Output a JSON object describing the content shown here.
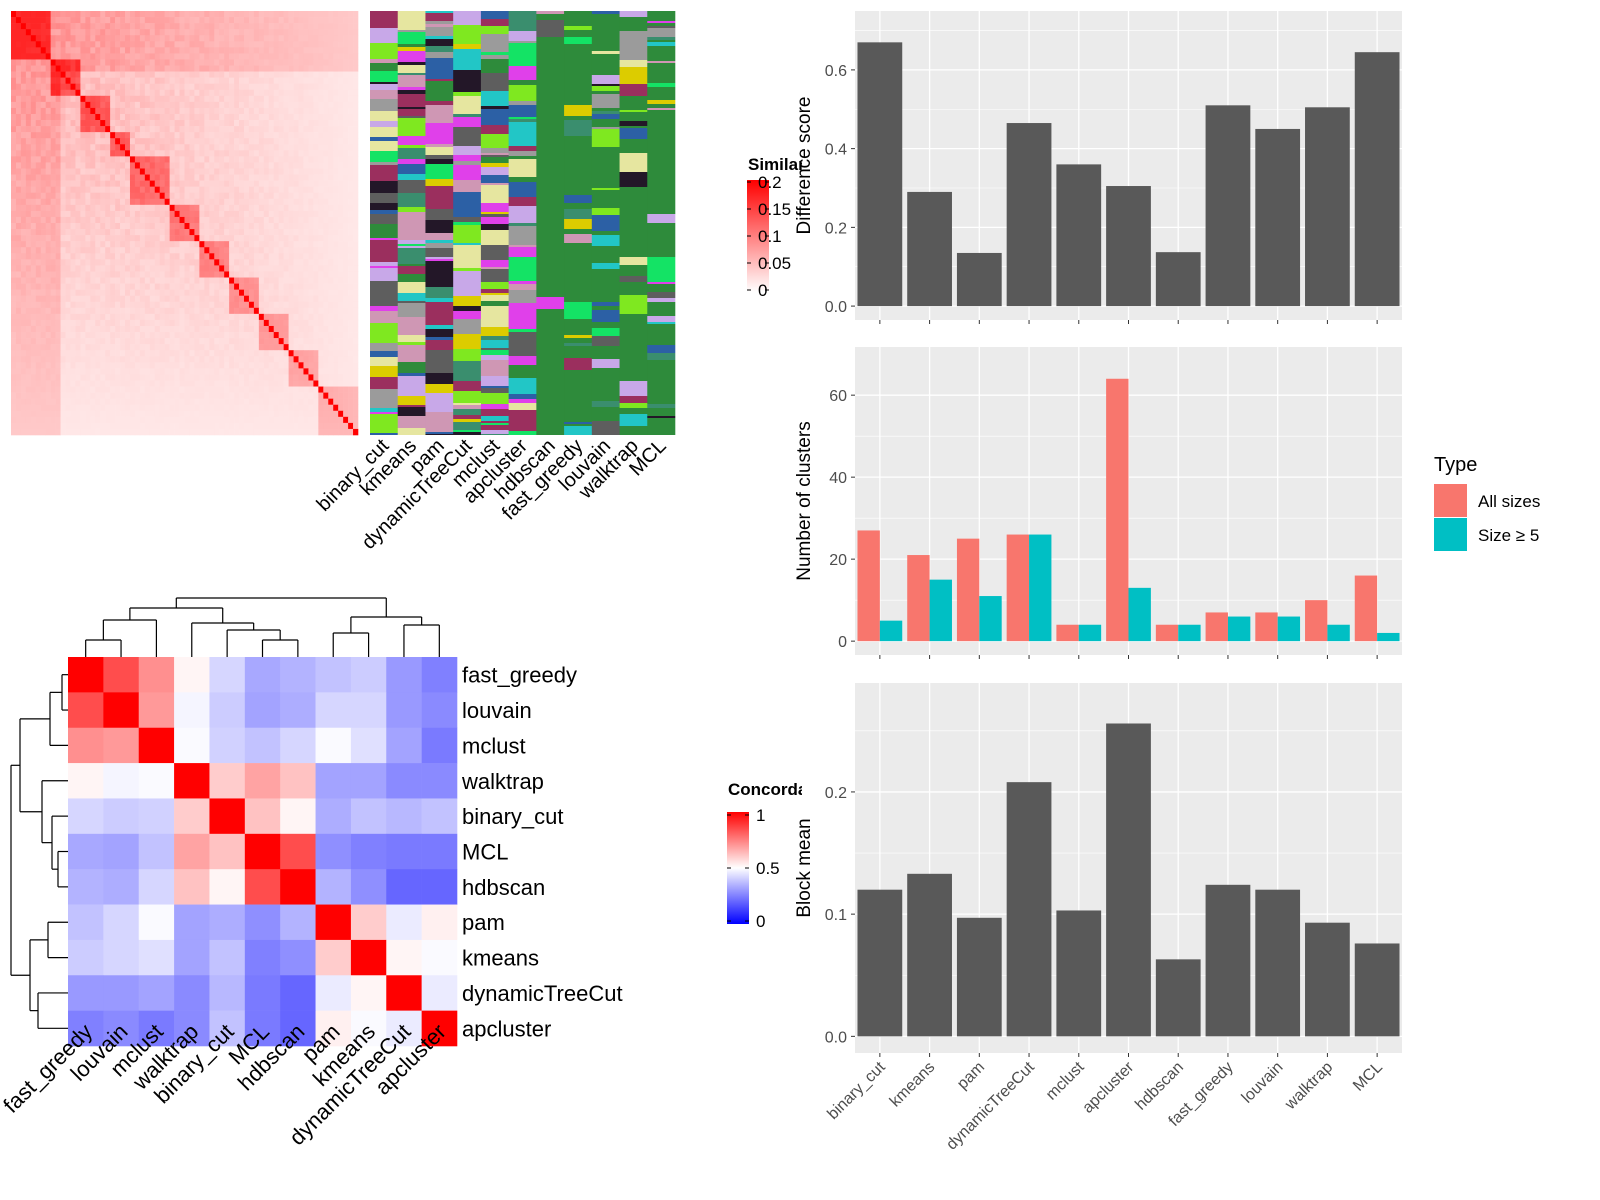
{
  "methods": [
    "binary_cut",
    "kmeans",
    "pam",
    "dynamicTreeCut",
    "mclust",
    "apcluster",
    "hdbscan",
    "fast_greedy",
    "louvain",
    "walktrap",
    "MCL"
  ],
  "similarity_heatmap": {
    "legend_title": "Similarity",
    "legend_ticks": [
      "0.2",
      "0.15",
      "0.1",
      "0.05",
      "0"
    ],
    "colors": {
      "low": "#ffffff",
      "high": "#ff0000"
    }
  },
  "concordance_heatmap": {
    "legend_title": "Concordance",
    "legend_ticks": [
      "1",
      "0.5",
      "0"
    ],
    "colors": {
      "low": "#0000ff",
      "mid": "#ffffff",
      "high": "#ff0000"
    },
    "row_order": [
      "fast_greedy",
      "louvain",
      "mclust",
      "walktrap",
      "binary_cut",
      "MCL",
      "hdbscan",
      "pam",
      "kmeans",
      "dynamicTreeCut",
      "apcluster"
    ],
    "col_order": [
      "fast_greedy",
      "louvain",
      "mclust",
      "walktrap",
      "binary_cut",
      "MCL",
      "hdbscan",
      "pam",
      "kmeans",
      "dynamicTreeCut",
      "apcluster"
    ]
  },
  "chart_data": [
    {
      "type": "bar",
      "categories": [
        "binary_cut",
        "kmeans",
        "pam",
        "dynamicTreeCut",
        "mclust",
        "apcluster",
        "hdbscan",
        "fast_greedy",
        "louvain",
        "walktrap",
        "MCL"
      ],
      "values": [
        0.67,
        0.29,
        0.135,
        0.465,
        0.36,
        0.305,
        0.137,
        0.51,
        0.45,
        0.505,
        0.645
      ],
      "ylabel": "Difference score",
      "ylim": [
        0,
        0.7
      ],
      "yticks": [
        "0.0",
        "0.2",
        "0.4",
        "0.6"
      ],
      "bar_color": "#595959"
    },
    {
      "type": "bar",
      "categories": [
        "binary_cut",
        "kmeans",
        "pam",
        "dynamicTreeCut",
        "mclust",
        "apcluster",
        "hdbscan",
        "fast_greedy",
        "louvain",
        "walktrap",
        "MCL"
      ],
      "series": [
        {
          "name": "All sizes",
          "values": [
            27,
            21,
            25,
            26,
            4,
            64,
            4,
            7,
            7,
            10,
            16
          ],
          "color": "#f8766d"
        },
        {
          "name": "Size ≥ 5",
          "values": [
            5,
            15,
            11,
            26,
            4,
            13,
            4,
            6,
            6,
            4,
            2
          ],
          "color": "#00bfc4"
        }
      ],
      "ylabel": "Number of clusters",
      "ylim": [
        0,
        67
      ],
      "yticks": [
        "0",
        "20",
        "40",
        "60"
      ],
      "legend_title": "Type",
      "legend_position": "right"
    },
    {
      "type": "bar",
      "categories": [
        "binary_cut",
        "kmeans",
        "pam",
        "dynamicTreeCut",
        "mclust",
        "apcluster",
        "hdbscan",
        "fast_greedy",
        "louvain",
        "walktrap",
        "MCL"
      ],
      "values": [
        0.12,
        0.133,
        0.097,
        0.208,
        0.103,
        0.256,
        0.063,
        0.124,
        0.12,
        0.093,
        0.076
      ],
      "ylabel": "Block mean",
      "ylim": [
        0,
        0.27
      ],
      "yticks": [
        "0.0",
        "0.1",
        "0.2"
      ],
      "bar_color": "#595959"
    }
  ]
}
